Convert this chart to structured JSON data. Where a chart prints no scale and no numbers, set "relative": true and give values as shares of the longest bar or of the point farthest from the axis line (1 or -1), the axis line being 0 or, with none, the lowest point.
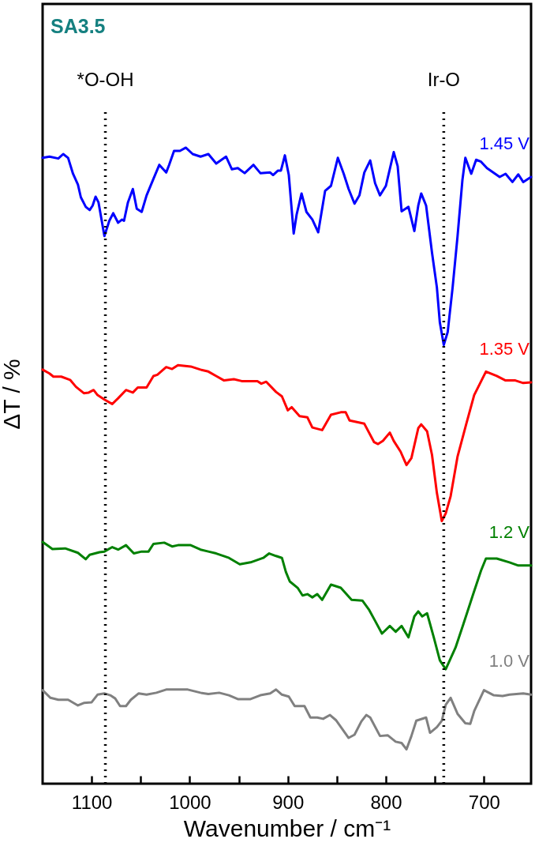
{
  "chart_data": {
    "type": "line",
    "title": "SA3.5",
    "xlabel": "Wavenumber / cm⁻¹",
    "ylabel": "ΔT / %",
    "relative": true,
    "xlim": [
      1150,
      652
    ],
    "xticks": [
      1100,
      {
        "value": 1050,
        "label": null
      },
      1000,
      {
        "value": 950,
        "label": null
      },
      900,
      {
        "value": 850,
        "label": null
      },
      800,
      {
        "value": 750,
        "label": null
      },
      700
    ],
    "ref_lines": [
      {
        "axis": "x",
        "value": 1086,
        "label": "*O-OH",
        "line_style": "dotted",
        "color": "#000000"
      },
      {
        "axis": "x",
        "value": 741,
        "label": "Ir-O",
        "line_style": "dotted",
        "color": "#000000"
      }
    ],
    "series": [
      {
        "name": "1.45 V",
        "color": "#0000ff",
        "x": [
          1150,
          1143,
          1134,
          1129,
          1124,
          1119,
          1114,
          1111,
          1106,
          1102,
          1099,
          1096,
          1093,
          1087,
          1082,
          1078,
          1073,
          1069,
          1067,
          1063,
          1058,
          1054,
          1049,
          1044,
          1037,
          1031,
          1024,
          1021,
          1016,
          1010,
          1004,
          997,
          989,
          981,
          973,
          963,
          957,
          951,
          944,
          935,
          928,
          918,
          915,
          910,
          907,
          903,
          899,
          894,
          891,
          886,
          881,
          875,
          869,
          862,
          856,
          849,
          843,
          838,
          832,
          827,
          822,
          816,
          811,
          806,
          800,
          792,
          788,
          784,
          777,
          771,
          767,
          764,
          759,
          753,
          748,
          745,
          741,
          737,
          732,
          727,
          722,
          719,
          713,
          708,
          703,
          697,
          684,
          678,
          671,
          665,
          660,
          652
        ],
        "values": [
          0.984,
          0.986,
          0.983,
          0.99,
          0.984,
          0.959,
          0.942,
          0.922,
          0.907,
          0.902,
          0.909,
          0.923,
          0.914,
          0.861,
          0.885,
          0.897,
          0.882,
          0.887,
          0.885,
          0.914,
          0.935,
          0.904,
          0.899,
          0.925,
          0.951,
          0.973,
          0.961,
          0.973,
          0.995,
          0.995,
          1,
          0.99,
          0.986,
          0.99,
          0.975,
          0.986,
          0.966,
          0.968,
          0.96,
          0.973,
          0.96,
          0.961,
          0.957,
          0.964,
          0.964,
          0.988,
          0.957,
          0.865,
          0.895,
          0.928,
          0.899,
          0.887,
          0.867,
          0.932,
          0.94,
          0.984,
          0.959,
          0.935,
          0.912,
          0.925,
          0.961,
          0.98,
          0.944,
          0.925,
          0.94,
          0.993,
          0.971,
          0.9,
          0.907,
          0.869,
          0.909,
          0.928,
          0.909,
          0.835,
          0.78,
          0.725,
          0.69,
          0.71,
          0.78,
          0.86,
          0.949,
          0.984,
          0.959,
          0.981,
          0.978,
          0.968,
          0.954,
          0.959,
          0.946,
          0.958,
          0.946,
          0.954
        ]
      },
      {
        "name": "1.35 V",
        "color": "#ff0000",
        "x": [
          1150,
          1143,
          1139,
          1131,
          1122,
          1116,
          1108,
          1103,
          1098,
          1094,
          1087,
          1079,
          1073,
          1065,
          1058,
          1053,
          1044,
          1037,
          1033,
          1024,
          1018,
          1012,
          999,
          989,
          981,
          973,
          965,
          955,
          947,
          931,
          927,
          922,
          912,
          906,
          900,
          896,
          888,
          880,
          875,
          865,
          856,
          846,
          841,
          837,
          822,
          812,
          808,
          803,
          796,
          792,
          785,
          779,
          774,
          767,
          764,
          758,
          753,
          748,
          743,
          739,
          734,
          727,
          718,
          710,
          698,
          687,
          678,
          668,
          660,
          652
        ],
        "values": [
          0.651,
          0.645,
          0.64,
          0.64,
          0.635,
          0.624,
          0.614,
          0.615,
          0.619,
          0.611,
          0.604,
          0.597,
          0.606,
          0.619,
          0.615,
          0.623,
          0.623,
          0.641,
          0.643,
          0.655,
          0.652,
          0.658,
          0.656,
          0.651,
          0.648,
          0.641,
          0.634,
          0.636,
          0.633,
          0.633,
          0.629,
          0.632,
          0.616,
          0.609,
          0.587,
          0.592,
          0.578,
          0.576,
          0.56,
          0.556,
          0.58,
          0.584,
          0.584,
          0.571,
          0.566,
          0.537,
          0.534,
          0.539,
          0.552,
          0.539,
          0.522,
          0.501,
          0.512,
          0.559,
          0.565,
          0.554,
          0.517,
          0.457,
          0.413,
          0.425,
          0.452,
          0.514,
          0.566,
          0.611,
          0.648,
          0.641,
          0.634,
          0.634,
          0.63,
          0.631
        ]
      },
      {
        "name": "1.2 V",
        "color": "#008000",
        "x": [
          1150,
          1140,
          1127,
          1114,
          1106,
          1102,
          1092,
          1087,
          1079,
          1073,
          1065,
          1057,
          1049,
          1042,
          1037,
          1026,
          1018,
          1012,
          999,
          989,
          981,
          973,
          960,
          949,
          938,
          925,
          919,
          912,
          906,
          902,
          898,
          890,
          885,
          880,
          875,
          870,
          865,
          856,
          846,
          835,
          824,
          817,
          811,
          804,
          796,
          790,
          784,
          777,
          771,
          767,
          763,
          758,
          751,
          745,
          739,
          729,
          721,
          711,
          703,
          698,
          687,
          674,
          665,
          652
        ],
        "values": [
          0.38,
          0.369,
          0.37,
          0.363,
          0.353,
          0.36,
          0.364,
          0.365,
          0.372,
          0.368,
          0.375,
          0.362,
          0.365,
          0.365,
          0.377,
          0.379,
          0.373,
          0.375,
          0.375,
          0.368,
          0.365,
          0.362,
          0.355,
          0.345,
          0.348,
          0.355,
          0.362,
          0.358,
          0.355,
          0.333,
          0.318,
          0.308,
          0.296,
          0.298,
          0.293,
          0.298,
          0.289,
          0.313,
          0.308,
          0.289,
          0.288,
          0.273,
          0.256,
          0.236,
          0.248,
          0.239,
          0.248,
          0.23,
          0.263,
          0.271,
          0.263,
          0.268,
          0.229,
          0.194,
          0.18,
          0.214,
          0.251,
          0.298,
          0.335,
          0.354,
          0.354,
          0.348,
          0.343,
          0.343
        ]
      },
      {
        "name": "1.0 V",
        "color": "#808080",
        "x": [
          1150,
          1142,
          1134,
          1124,
          1114,
          1108,
          1100,
          1094,
          1087,
          1081,
          1076,
          1071,
          1065,
          1060,
          1052,
          1044,
          1034,
          1024,
          1002,
          989,
          981,
          970,
          960,
          951,
          938,
          928,
          918,
          912,
          906,
          899,
          893,
          883,
          877,
          870,
          864,
          857,
          851,
          845,
          838,
          832,
          825,
          820,
          816,
          806,
          798,
          790,
          784,
          779,
          774,
          769,
          759,
          755,
          748,
          743,
          739,
          734,
          727,
          719,
          714,
          710,
          700,
          690,
          681,
          674,
          660,
          652
        ],
        "values": [
          0.147,
          0.135,
          0.132,
          0.132,
          0.123,
          0.127,
          0.128,
          0.14,
          0.142,
          0.139,
          0.134,
          0.122,
          0.122,
          0.132,
          0.142,
          0.14,
          0.143,
          0.148,
          0.148,
          0.143,
          0.141,
          0.143,
          0.139,
          0.133,
          0.133,
          0.139,
          0.142,
          0.148,
          0.14,
          0.137,
          0.122,
          0.122,
          0.104,
          0.104,
          0.102,
          0.108,
          0.1,
          0.087,
          0.072,
          0.077,
          0.098,
          0.108,
          0.104,
          0.075,
          0.076,
          0.066,
          0.064,
          0.054,
          0.075,
          0.099,
          0.104,
          0.08,
          0.089,
          0.099,
          0.124,
          0.135,
          0.11,
          0.095,
          0.094,
          0.114,
          0.147,
          0.139,
          0.138,
          0.14,
          0.142,
          0.14
        ]
      }
    ]
  }
}
